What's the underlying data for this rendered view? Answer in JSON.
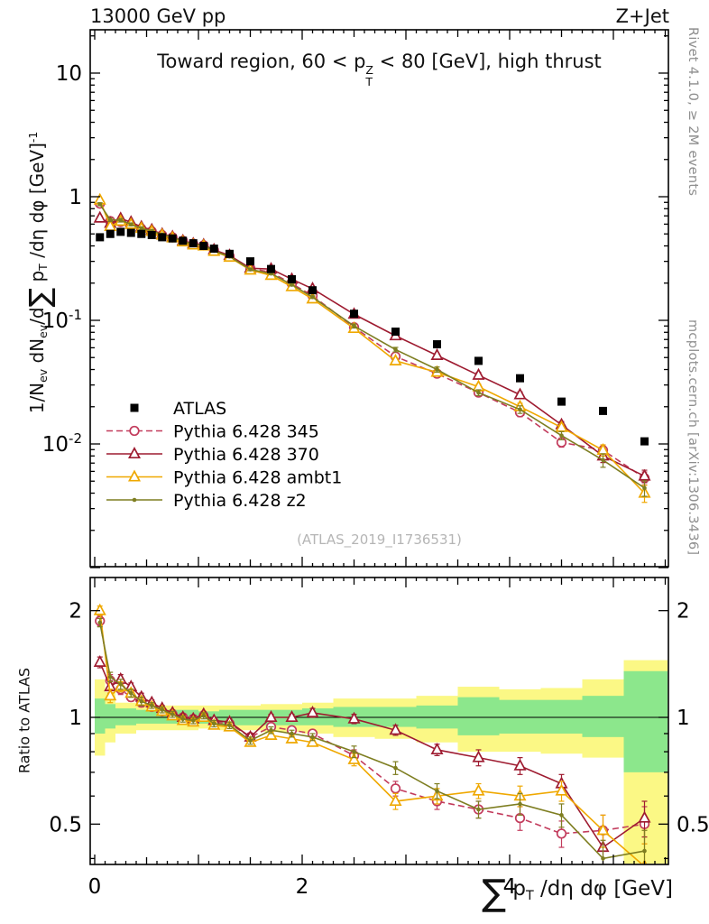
{
  "header": {
    "left": "13000 GeV pp",
    "right": "Z+Jet"
  },
  "side_notes": {
    "rivet": "Rivet 4.1.0, ≥ 2M events",
    "mcplots": "mcplots.cern.ch [arXiv:1306.3436]"
  },
  "panel_title": {
    "pre": "Toward region, 60 < p",
    "sup": "Z",
    "sub": "T",
    "post": " < 80 [GeV], high thrust"
  },
  "axis": {
    "y_main": {
      "pre": "1/N",
      "sub1": "ev",
      "mid1": " dN",
      "sub2": "ev",
      "mid2": "/d",
      "sum": "∑",
      "p": " p",
      "sub3": "T",
      "post": " /dη dφ  [GeV]",
      "sup": "-1"
    },
    "y_ratio": "Ratio to ATLAS",
    "x": {
      "sum": "∑",
      "p": " p",
      "sub": "T",
      "post": " /dη dφ [GeV]"
    }
  },
  "chart_data": {
    "type": "line",
    "title": "Toward region, 60 < pT^Z < 80 [GeV], high thrust",
    "xlabel": "sum pT /deta dphi [GeV]",
    "ylabel": "1/N_ev dN_ev/d sum pT /deta dphi [GeV]^-1",
    "ratio_ylabel": "Ratio to ATLAS",
    "watermark": "(ATLAS_2019_I1736531)",
    "x_scale": "linear",
    "xlim": [
      0,
      5.53
    ],
    "y_scale_main": "log",
    "ylim_main": [
      0.001,
      22
    ],
    "y_scale_ratio": "log",
    "ylim_ratio": [
      0.39,
      2.48
    ],
    "x_ticks": [
      0,
      2,
      4
    ],
    "y_ticks_main": [
      0.01,
      0.1,
      1,
      10
    ],
    "y_ticks_ratio": [
      0.5,
      1,
      2
    ],
    "colors": {
      "band_yellow": "#fbf885",
      "band_green": "#8ce78c"
    },
    "x": [
      0.05,
      0.15,
      0.25,
      0.35,
      0.45,
      0.55,
      0.65,
      0.75,
      0.85,
      0.95,
      1.05,
      1.15,
      1.3,
      1.5,
      1.7,
      1.9,
      2.1,
      2.5,
      2.9,
      3.3,
      3.7,
      4.1,
      4.5,
      4.9,
      5.3
    ],
    "atlas": {
      "name": "ATLAS",
      "marker": "square",
      "color": "#000000",
      "values": [
        0.47,
        0.5,
        0.52,
        0.51,
        0.5,
        0.49,
        0.47,
        0.46,
        0.44,
        0.42,
        0.4,
        0.38,
        0.345,
        0.3,
        0.26,
        0.215,
        0.175,
        0.113,
        0.081,
        0.064,
        0.047,
        0.034,
        0.022,
        0.0185,
        0.0105
      ]
    },
    "series": [
      {
        "id": "345",
        "name": "Pythia 6.428 345",
        "color": "#c23b5c",
        "line": "dashed",
        "marker": "circle-open",
        "values": [
          0.879,
          0.635,
          0.624,
          0.581,
          0.55,
          0.524,
          0.489,
          0.469,
          0.44,
          0.416,
          0.404,
          0.369,
          0.331,
          0.264,
          0.244,
          0.198,
          0.158,
          0.088,
          0.051,
          0.037,
          0.026,
          0.018,
          0.0103,
          0.0089,
          0.0053
        ],
        "ratio": [
          1.87,
          1.27,
          1.2,
          1.14,
          1.1,
          1.07,
          1.04,
          1.02,
          1.0,
          0.99,
          1.01,
          0.97,
          0.96,
          0.88,
          0.94,
          0.92,
          0.9,
          0.78,
          0.63,
          0.58,
          0.55,
          0.52,
          0.47,
          0.48,
          0.5
        ],
        "ratio_err": [
          0.06,
          0.05,
          0.04,
          0.03,
          0.03,
          0.02,
          0.02,
          0.02,
          0.02,
          0.02,
          0.02,
          0.02,
          0.02,
          0.02,
          0.02,
          0.02,
          0.02,
          0.03,
          0.03,
          0.03,
          0.03,
          0.04,
          0.04,
          0.05,
          0.06
        ]
      },
      {
        "id": "370",
        "name": "Pythia 6.428 370",
        "color": "#9e1b30",
        "line": "solid",
        "marker": "triangle-open",
        "values": [
          0.672,
          0.61,
          0.666,
          0.622,
          0.57,
          0.539,
          0.498,
          0.474,
          0.44,
          0.416,
          0.408,
          0.372,
          0.335,
          0.264,
          0.26,
          0.215,
          0.18,
          0.112,
          0.075,
          0.052,
          0.036,
          0.025,
          0.0143,
          0.008,
          0.0055
        ],
        "ratio": [
          1.43,
          1.22,
          1.28,
          1.22,
          1.14,
          1.1,
          1.06,
          1.03,
          1.0,
          0.99,
          1.02,
          0.98,
          0.97,
          0.88,
          1.0,
          1.0,
          1.03,
          0.99,
          0.92,
          0.81,
          0.77,
          0.73,
          0.65,
          0.43,
          0.52
        ],
        "ratio_err": [
          0.05,
          0.05,
          0.04,
          0.03,
          0.03,
          0.02,
          0.02,
          0.02,
          0.02,
          0.02,
          0.02,
          0.02,
          0.02,
          0.02,
          0.02,
          0.02,
          0.03,
          0.03,
          0.03,
          0.03,
          0.04,
          0.04,
          0.04,
          0.05,
          0.06
        ]
      },
      {
        "id": "ambt1",
        "name": "Pythia 6.428 ambt1",
        "color": "#efa800",
        "line": "solid",
        "marker": "triangle-open",
        "values": [
          0.94,
          0.575,
          0.634,
          0.597,
          0.555,
          0.524,
          0.489,
          0.465,
          0.431,
          0.407,
          0.4,
          0.361,
          0.324,
          0.255,
          0.231,
          0.187,
          0.149,
          0.086,
          0.047,
          0.038,
          0.029,
          0.02,
          0.0136,
          0.0089,
          0.004
        ],
        "ratio": [
          2.0,
          1.15,
          1.22,
          1.17,
          1.11,
          1.07,
          1.04,
          1.01,
          0.98,
          0.97,
          1.0,
          0.95,
          0.94,
          0.85,
          0.89,
          0.87,
          0.85,
          0.76,
          0.58,
          0.6,
          0.62,
          0.6,
          0.62,
          0.48,
          0.38
        ],
        "ratio_err": [
          0.06,
          0.05,
          0.04,
          0.03,
          0.03,
          0.02,
          0.02,
          0.02,
          0.02,
          0.02,
          0.02,
          0.02,
          0.02,
          0.02,
          0.02,
          0.02,
          0.02,
          0.03,
          0.03,
          0.03,
          0.03,
          0.04,
          0.04,
          0.05,
          0.06
        ]
      },
      {
        "id": "z2",
        "name": "Pythia 6.428 z2",
        "color": "#7e7e21",
        "line": "solid",
        "marker": "dot",
        "values": [
          0.87,
          0.65,
          0.645,
          0.597,
          0.555,
          0.529,
          0.494,
          0.469,
          0.436,
          0.412,
          0.404,
          0.365,
          0.328,
          0.258,
          0.239,
          0.194,
          0.154,
          0.09,
          0.058,
          0.04,
          0.026,
          0.019,
          0.0117,
          0.0074,
          0.0044
        ],
        "ratio": [
          1.85,
          1.3,
          1.24,
          1.17,
          1.11,
          1.08,
          1.05,
          1.02,
          0.99,
          0.98,
          1.01,
          0.96,
          0.95,
          0.86,
          0.92,
          0.9,
          0.88,
          0.8,
          0.72,
          0.62,
          0.55,
          0.57,
          0.53,
          0.4,
          0.42
        ],
        "ratio_err": [
          0.05,
          0.04,
          0.04,
          0.03,
          0.03,
          0.02,
          0.02,
          0.02,
          0.02,
          0.02,
          0.02,
          0.02,
          0.02,
          0.02,
          0.02,
          0.02,
          0.02,
          0.03,
          0.03,
          0.03,
          0.03,
          0.04,
          0.04,
          0.05,
          0.06
        ]
      }
    ],
    "bands": [
      {
        "x0": 0.0,
        "x1": 0.1,
        "yellow": [
          0.78,
          1.28
        ],
        "green": [
          0.9,
          1.13
        ]
      },
      {
        "x0": 0.1,
        "x1": 0.2,
        "yellow": [
          0.85,
          1.18
        ],
        "green": [
          0.93,
          1.09
        ]
      },
      {
        "x0": 0.2,
        "x1": 0.4,
        "yellow": [
          0.9,
          1.1
        ],
        "green": [
          0.95,
          1.06
        ]
      },
      {
        "x0": 0.4,
        "x1": 1.0,
        "yellow": [
          0.92,
          1.08
        ],
        "green": [
          0.96,
          1.05
        ]
      },
      {
        "x0": 1.0,
        "x1": 1.2,
        "yellow": [
          0.93,
          1.08
        ],
        "green": [
          0.96,
          1.04
        ]
      },
      {
        "x0": 1.2,
        "x1": 1.6,
        "yellow": [
          0.92,
          1.08
        ],
        "green": [
          0.95,
          1.05
        ]
      },
      {
        "x0": 1.6,
        "x1": 2.0,
        "yellow": [
          0.91,
          1.09
        ],
        "green": [
          0.95,
          1.05
        ]
      },
      {
        "x0": 2.0,
        "x1": 2.3,
        "yellow": [
          0.9,
          1.1
        ],
        "green": [
          0.95,
          1.06
        ]
      },
      {
        "x0": 2.3,
        "x1": 2.7,
        "yellow": [
          0.88,
          1.13
        ],
        "green": [
          0.94,
          1.07
        ]
      },
      {
        "x0": 2.7,
        "x1": 3.1,
        "yellow": [
          0.87,
          1.13
        ],
        "green": [
          0.94,
          1.07
        ]
      },
      {
        "x0": 3.1,
        "x1": 3.5,
        "yellow": [
          0.85,
          1.15
        ],
        "green": [
          0.93,
          1.08
        ]
      },
      {
        "x0": 3.5,
        "x1": 3.9,
        "yellow": [
          0.8,
          1.22
        ],
        "green": [
          0.89,
          1.14
        ]
      },
      {
        "x0": 3.9,
        "x1": 4.3,
        "yellow": [
          0.8,
          1.2
        ],
        "green": [
          0.9,
          1.12
        ]
      },
      {
        "x0": 4.3,
        "x1": 4.7,
        "yellow": [
          0.79,
          1.21
        ],
        "green": [
          0.9,
          1.12
        ]
      },
      {
        "x0": 4.7,
        "x1": 5.1,
        "yellow": [
          0.77,
          1.28
        ],
        "green": [
          0.88,
          1.15
        ]
      },
      {
        "x0": 5.1,
        "x1": 5.53,
        "yellow": [
          0.35,
          1.45
        ],
        "green": [
          0.7,
          1.35
        ]
      }
    ],
    "legend_entries": [
      "ATLAS",
      "Pythia 6.428 345",
      "Pythia 6.428 370",
      "Pythia 6.428 ambt1",
      "Pythia 6.428 z2"
    ]
  }
}
